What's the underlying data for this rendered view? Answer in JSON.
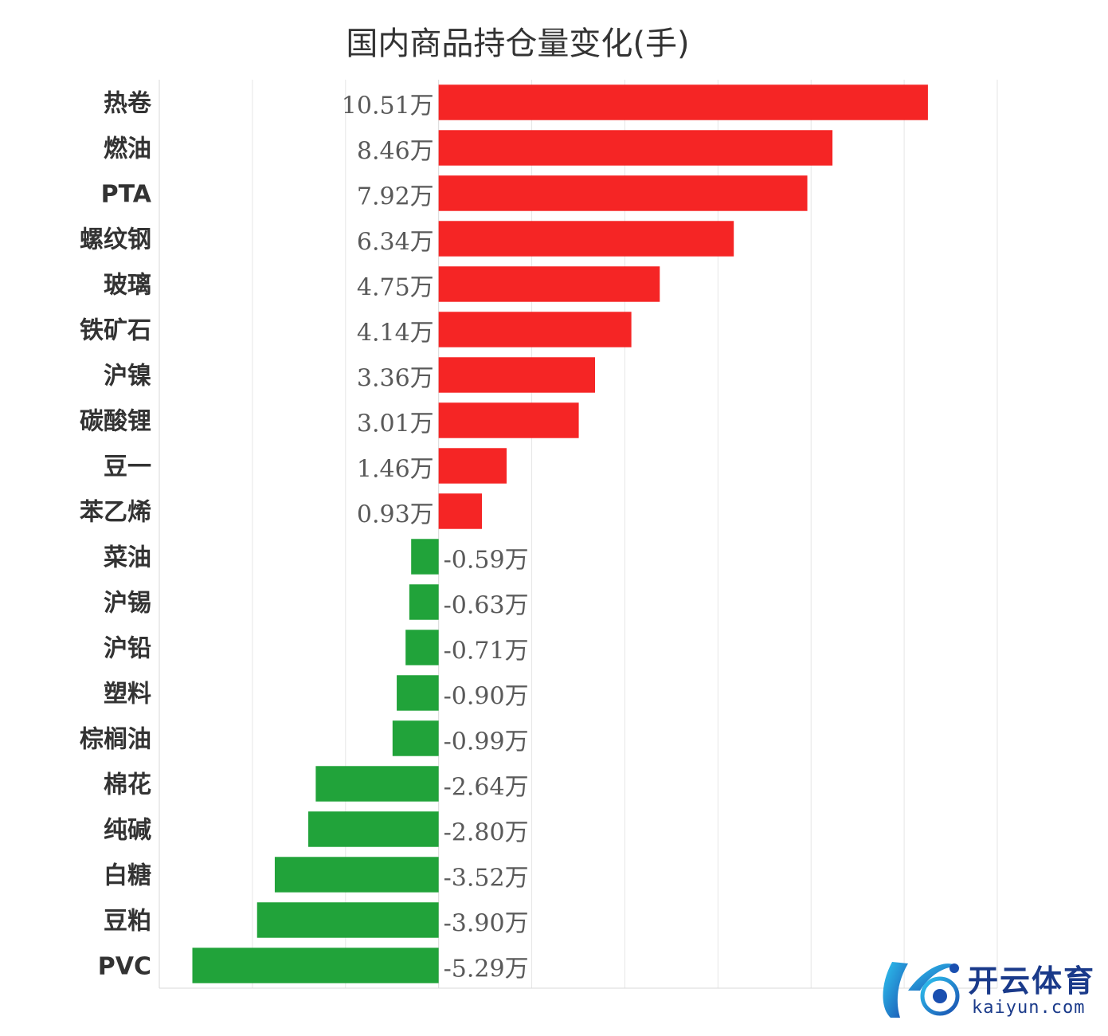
{
  "chart_data": {
    "type": "bar",
    "orientation": "horizontal",
    "title": "国内商品持仓量变化(手)",
    "unit_suffix": "万",
    "categories": [
      "热卷",
      "燃油",
      "PTA",
      "螺纹钢",
      "玻璃",
      "铁矿石",
      "沪镍",
      "碳酸锂",
      "豆一",
      "苯乙烯",
      "菜油",
      "沪锡",
      "沪铅",
      "塑料",
      "棕榈油",
      "棉花",
      "纯碱",
      "白糖",
      "豆粕",
      "PVC"
    ],
    "values": [
      10.51,
      8.46,
      7.92,
      6.34,
      4.75,
      4.14,
      3.36,
      3.01,
      1.46,
      0.93,
      -0.59,
      -0.63,
      -0.71,
      -0.9,
      -0.99,
      -2.64,
      -2.8,
      -3.52,
      -3.9,
      -5.29
    ],
    "value_labels": [
      "10.51万",
      "8.46万",
      "7.92万",
      "6.34万",
      "4.75万",
      "4.14万",
      "3.36万",
      "3.01万",
      "1.46万",
      "0.93万",
      "-0.59万",
      "-0.63万",
      "-0.71万",
      "-0.90万",
      "-0.99万",
      "-2.64万",
      "-2.80万",
      "-3.52万",
      "-3.90万",
      "-5.29万"
    ],
    "xlim": [
      -6,
      12
    ],
    "grid": true,
    "positive_color": "#f52525",
    "negative_color": "#21a33a"
  },
  "watermark": {
    "brand_text": "开云体育",
    "url_text": "kaiyun.com"
  }
}
